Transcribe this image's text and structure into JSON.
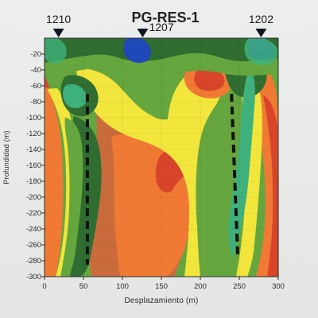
{
  "chart_data": {
    "type": "heatmap",
    "title": "PG-RES-1",
    "xlabel": "Desplazamiento (m)",
    "ylabel": "Profundidad (m)",
    "xlim": [
      0,
      300
    ],
    "ylim": [
      -300,
      0
    ],
    "x_ticks": [
      0,
      50,
      100,
      150,
      200,
      250,
      300
    ],
    "y_ticks": [
      -20,
      -40,
      -60,
      -80,
      -100,
      -120,
      -140,
      -160,
      -180,
      -200,
      -220,
      -240,
      -260,
      -280,
      -300
    ],
    "markers": [
      {
        "label": "1210",
        "x": 18
      },
      {
        "label": "1207",
        "x": 126
      },
      {
        "label": "1202",
        "x": 278
      }
    ],
    "dashed_lines": [
      {
        "x": [
          55,
          55
        ],
        "y": [
          -70,
          -285
        ]
      },
      {
        "x": [
          240,
          248
        ],
        "y": [
          -70,
          -275
        ]
      }
    ],
    "colors": {
      "red": "#d8452b",
      "orange": "#f07a34",
      "brown": "#c96b3b",
      "yellow": "#f2e63c",
      "green": "#66a63e",
      "dark_green": "#2f6d31",
      "teal": "#3fb17d",
      "blue": "#1f48b8"
    }
  }
}
